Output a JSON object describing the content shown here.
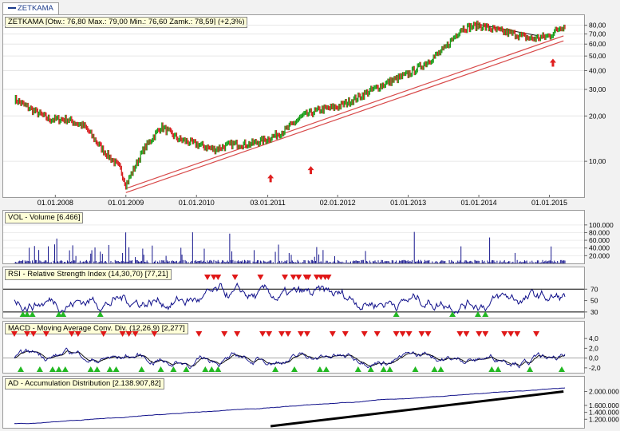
{
  "tab_label": "ZETKAMA",
  "panels": {
    "price": {
      "title": "ZETKAMA [Otw.: 76,80  Max.: 79,00  Min.: 76,60  Zamk.: 78,59] (+2,3%)",
      "yticks": [
        "80,00",
        "70,00",
        "60,00",
        "50,00",
        "40,00",
        "30,00",
        "20,00",
        "10,00"
      ]
    },
    "volume": {
      "title": "VOL - Volume [6.466]",
      "yticks": [
        "100.000",
        "80.000",
        "60.000",
        "40.000",
        "20.000"
      ]
    },
    "rsi": {
      "title": "RSI - Relative Strength Index (14,30,70) [77,21]",
      "yticks": [
        "70",
        "50",
        "30"
      ]
    },
    "macd": {
      "title": "MACD - Moving Average Conv. Div. (12,26,9) [2,277]",
      "yticks": [
        "4,0",
        "2,0",
        "0,0",
        "-2,0"
      ]
    },
    "ad": {
      "title": "AD - Accumulation Distribution [2.138.907,82]",
      "yticks": [
        "2.000.000",
        "1.600.000",
        "1.400.000",
        "1.200.000"
      ]
    }
  },
  "x_labels": [
    "01.01.2008",
    "01.01.2009",
    "01.01.2010",
    "03.01.2011",
    "02.01.2012",
    "01.01.2013",
    "01.01.2014",
    "01.01.2015"
  ],
  "chart_data": {
    "type": "line",
    "x": [
      "2007-06",
      "2007-09",
      "2007-12",
      "2008-03",
      "2008-06",
      "2008-09",
      "2008-12",
      "2009-01",
      "2009-04",
      "2009-07",
      "2009-10",
      "2010-01",
      "2010-04",
      "2010-07",
      "2010-10",
      "2011-01",
      "2011-04",
      "2011-07",
      "2011-10",
      "2012-01",
      "2012-04",
      "2012-07",
      "2012-10",
      "2013-01",
      "2013-04",
      "2013-07",
      "2013-10",
      "2014-01",
      "2014-04",
      "2014-07",
      "2014-10",
      "2015-01",
      "2015-03"
    ],
    "series": [
      {
        "name": "ZETKAMA",
        "values": [
          26,
          22,
          19,
          19,
          17,
          12,
          9,
          7,
          12,
          17,
          14,
          13,
          12,
          13,
          13,
          14,
          16,
          20,
          22,
          23,
          26,
          30,
          34,
          38,
          45,
          55,
          76,
          80,
          74,
          70,
          65,
          68,
          78.59
        ]
      }
    ],
    "yscale": "log",
    "ylim": [
      6,
      90
    ],
    "colors": {
      "up": "#1a9e1a",
      "down": "#d42020",
      "line": "#1a3a8a",
      "trend": "#d84a4a",
      "bar_green": "#22b822",
      "bar_red": "#e01818"
    }
  }
}
